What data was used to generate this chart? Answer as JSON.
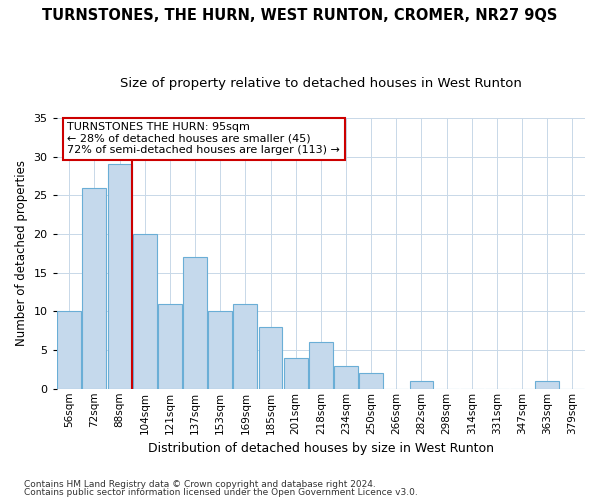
{
  "title": "TURNSTONES, THE HURN, WEST RUNTON, CROMER, NR27 9QS",
  "subtitle": "Size of property relative to detached houses in West Runton",
  "xlabel": "Distribution of detached houses by size in West Runton",
  "ylabel": "Number of detached properties",
  "categories": [
    "56sqm",
    "72sqm",
    "88sqm",
    "104sqm",
    "121sqm",
    "137sqm",
    "153sqm",
    "169sqm",
    "185sqm",
    "201sqm",
    "218sqm",
    "234sqm",
    "250sqm",
    "266sqm",
    "282sqm",
    "298sqm",
    "314sqm",
    "331sqm",
    "347sqm",
    "363sqm",
    "379sqm"
  ],
  "values": [
    10,
    26,
    29,
    20,
    11,
    17,
    10,
    11,
    8,
    4,
    6,
    3,
    2,
    0,
    1,
    0,
    0,
    0,
    0,
    1,
    0
  ],
  "bar_color": "#c5d9ec",
  "bar_edge_color": "#6aaed6",
  "red_line_index": 2,
  "annotation_text": "TURNSTONES THE HURN: 95sqm\n← 28% of detached houses are smaller (45)\n72% of semi-detached houses are larger (113) →",
  "ylim": [
    0,
    35
  ],
  "yticks": [
    0,
    5,
    10,
    15,
    20,
    25,
    30,
    35
  ],
  "footnote1": "Contains HM Land Registry data © Crown copyright and database right 2024.",
  "footnote2": "Contains public sector information licensed under the Open Government Licence v3.0.",
  "background_color": "#ffffff",
  "plot_bg_color": "#ffffff",
  "grid_color": "#c8d8e8",
  "annotation_box_color": "#ffffff",
  "annotation_box_edge": "#cc0000",
  "red_line_color": "#cc0000",
  "title_fontsize": 10.5,
  "subtitle_fontsize": 9.5
}
